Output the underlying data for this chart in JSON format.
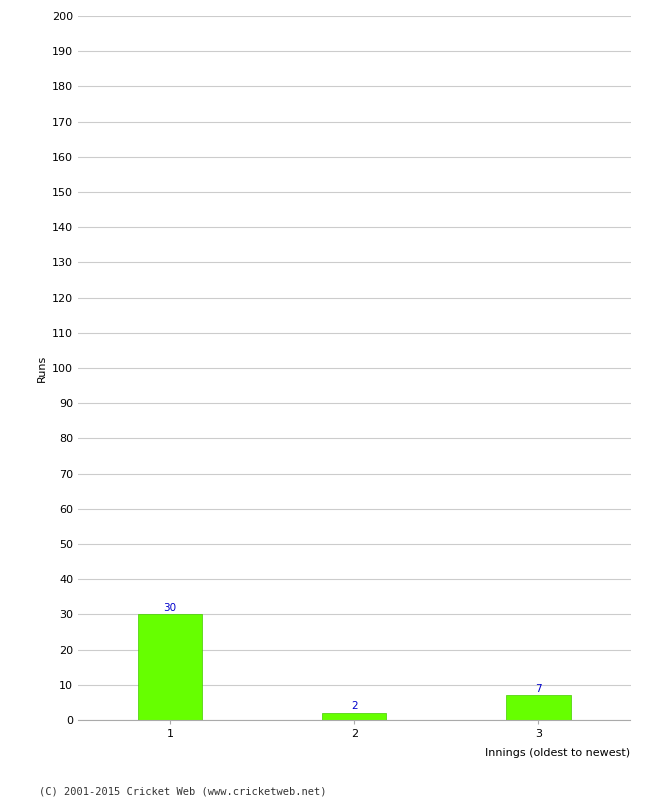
{
  "categories": [
    "1",
    "2",
    "3"
  ],
  "values": [
    30,
    2,
    7
  ],
  "bar_color": "#66ff00",
  "bar_edge_color": "#44cc00",
  "ylabel": "Runs",
  "xlabel": "Innings (oldest to newest)",
  "ylim": [
    0,
    200
  ],
  "ytick_step": 10,
  "background_color": "#ffffff",
  "grid_color": "#cccccc",
  "label_color": "#0000cc",
  "footer_text": "(C) 2001-2015 Cricket Web (www.cricketweb.net)",
  "label_fontsize": 7.5,
  "footer_fontsize": 7.5,
  "axis_label_fontsize": 8,
  "tick_fontsize": 8,
  "bar_width": 0.35,
  "n_bars": 3
}
